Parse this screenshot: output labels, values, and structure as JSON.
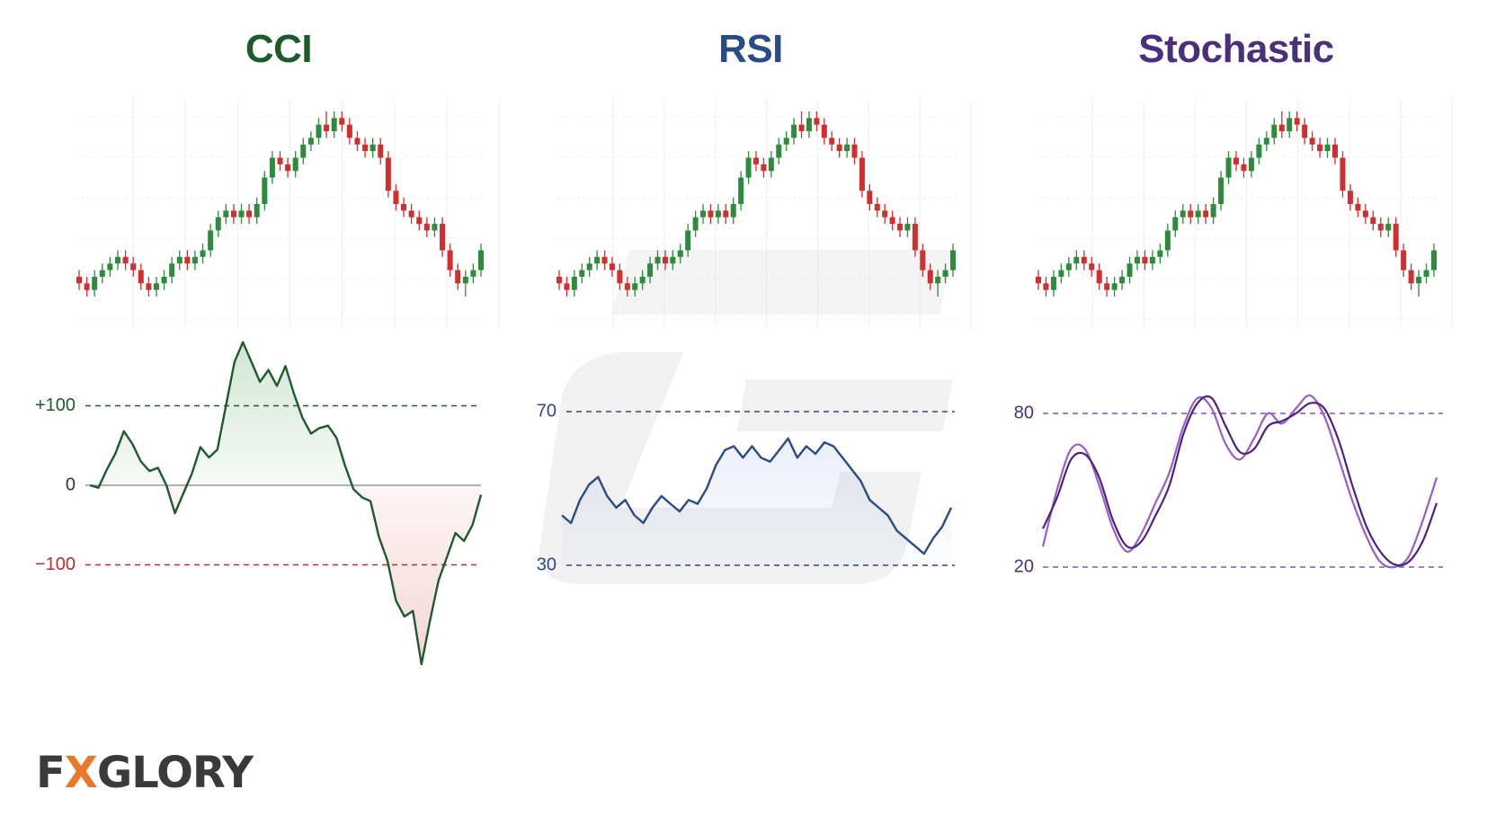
{
  "titles": {
    "cci": "CCI",
    "rsi": "RSI",
    "stochastic": "Stochastic"
  },
  "logo": {
    "text": "FXGLORY",
    "brand_color": "#3a3a3a",
    "accent_color": "#e8792a"
  },
  "colors": {
    "cci": "#1f5a2e",
    "rsi": "#2b4b86",
    "stoch": "#4a2f7a",
    "candle_up": "#2e8b3d",
    "candle_down": "#cf2f2f",
    "stoch_k": "#9a5cc8",
    "stoch_d": "#4a2380"
  },
  "chart_data": [
    {
      "type": "candlestick",
      "title": "",
      "note": "identical price candles shown above each indicator",
      "candles": [
        [
          16,
          17,
          14,
          15
        ],
        [
          15,
          16,
          13,
          14
        ],
        [
          14,
          17,
          13,
          16
        ],
        [
          16,
          18,
          15,
          17
        ],
        [
          17,
          19,
          16,
          18
        ],
        [
          18,
          20,
          17,
          19
        ],
        [
          19,
          20,
          17,
          18
        ],
        [
          18,
          19,
          16,
          17
        ],
        [
          17,
          18,
          14,
          15
        ],
        [
          15,
          16,
          13,
          14
        ],
        [
          14,
          16,
          13,
          15
        ],
        [
          15,
          17,
          14,
          16
        ],
        [
          16,
          19,
          15,
          18
        ],
        [
          18,
          20,
          17,
          19
        ],
        [
          19,
          20,
          17,
          18
        ],
        [
          18,
          20,
          17,
          19
        ],
        [
          19,
          21,
          18,
          20
        ],
        [
          20,
          24,
          19,
          23
        ],
        [
          23,
          26,
          22,
          25
        ],
        [
          25,
          27,
          24,
          26
        ],
        [
          26,
          27,
          24,
          25
        ],
        [
          25,
          27,
          24,
          26
        ],
        [
          26,
          27,
          24,
          25
        ],
        [
          25,
          28,
          24,
          27
        ],
        [
          27,
          32,
          26,
          31
        ],
        [
          31,
          35,
          30,
          34
        ],
        [
          34,
          35,
          32,
          33
        ],
        [
          33,
          34,
          31,
          32
        ],
        [
          32,
          35,
          31,
          34
        ],
        [
          34,
          37,
          33,
          36
        ],
        [
          36,
          38,
          35,
          37
        ],
        [
          37,
          40,
          36,
          39
        ],
        [
          39,
          41,
          37,
          38
        ],
        [
          38,
          41,
          37,
          40
        ],
        [
          40,
          41,
          38,
          39
        ],
        [
          39,
          40,
          36,
          37
        ],
        [
          37,
          38,
          35,
          36
        ],
        [
          36,
          37,
          34,
          35
        ],
        [
          35,
          37,
          34,
          36
        ],
        [
          36,
          37,
          33,
          34
        ],
        [
          34,
          35,
          28,
          29
        ],
        [
          29,
          30,
          26,
          27
        ],
        [
          27,
          28,
          25,
          26
        ],
        [
          26,
          27,
          24,
          25
        ],
        [
          25,
          26,
          23,
          24
        ],
        [
          24,
          25,
          22,
          23
        ],
        [
          23,
          25,
          22,
          24
        ],
        [
          24,
          25,
          19,
          20
        ],
        [
          20,
          21,
          16,
          17
        ],
        [
          17,
          18,
          14,
          15
        ],
        [
          15,
          17,
          13,
          16
        ],
        [
          16,
          18,
          15,
          17
        ],
        [
          17,
          21,
          16,
          20
        ]
      ]
    },
    {
      "type": "line",
      "title": "CCI",
      "levels": [
        100,
        0,
        -100
      ],
      "level_labels": [
        "+100",
        "0",
        "−100"
      ],
      "ylim": [
        -230,
        190
      ],
      "values": [
        0,
        -3,
        20,
        40,
        68,
        52,
        30,
        18,
        22,
        0,
        -35,
        -10,
        15,
        48,
        35,
        45,
        100,
        155,
        180,
        155,
        130,
        145,
        125,
        150,
        115,
        85,
        65,
        72,
        75,
        60,
        25,
        -5,
        -15,
        -20,
        -65,
        -95,
        -145,
        -165,
        -158,
        -225,
        -170,
        -120,
        -90,
        -60,
        -70,
        -50,
        -12
      ]
    },
    {
      "type": "line",
      "title": "RSI",
      "levels": [
        70,
        30
      ],
      "level_labels": [
        "70",
        "30"
      ],
      "ylim": [
        15,
        85
      ],
      "values": [
        43,
        41,
        47,
        51,
        53,
        48,
        45,
        47,
        43,
        41,
        45,
        48,
        46,
        44,
        47,
        46,
        50,
        56,
        60,
        61,
        58,
        61,
        58,
        57,
        60,
        63,
        58,
        61,
        59,
        62,
        61,
        58,
        55,
        52,
        47,
        45,
        43,
        39,
        37,
        35,
        33,
        37,
        40,
        45
      ]
    },
    {
      "type": "line",
      "title": "Stochastic",
      "levels": [
        80,
        20
      ],
      "level_labels": [
        "80",
        "20"
      ],
      "ylim": [
        0,
        100
      ],
      "series": [
        {
          "values": [
            28,
            50,
            66,
            66,
            52,
            35,
            26,
            33,
            45,
            57,
            75,
            86,
            82,
            68,
            62,
            70,
            80,
            76,
            82,
            87,
            79,
            63,
            46,
            32,
            22,
            20,
            24,
            38,
            55
          ]
        },
        {
          "values": [
            35,
            47,
            62,
            64,
            55,
            38,
            28,
            30,
            40,
            52,
            72,
            84,
            86,
            75,
            65,
            66,
            75,
            77,
            80,
            84,
            82,
            70,
            52,
            36,
            26,
            21,
            22,
            30,
            45
          ]
        }
      ]
    }
  ]
}
